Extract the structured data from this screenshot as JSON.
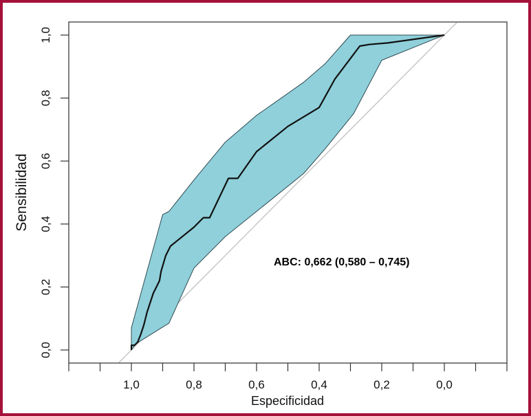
{
  "chart_data": {
    "type": "line",
    "title": "",
    "xlabel": "Especificidad",
    "ylabel": "Sensibilidad",
    "x_reversed": true,
    "xlim": [
      1.2,
      -0.2
    ],
    "ylim": [
      0.0,
      1.0
    ],
    "x_ticks": [
      1.0,
      0.8,
      0.6,
      0.4,
      0.2,
      0.0
    ],
    "x_tick_labels": [
      "1,0",
      "0,8",
      "0,6",
      "0,4",
      "0,2",
      "0,0"
    ],
    "y_ticks": [
      0.0,
      0.2,
      0.4,
      0.6,
      0.8,
      1.0
    ],
    "y_tick_labels": [
      "0,0",
      "0,2",
      "0,4",
      "0,6",
      "0,8",
      "1,0"
    ],
    "grid": false,
    "annotation": "ABC: 0,662 (0,580 – 0,745)",
    "colors": {
      "band": "#8fd0da",
      "band_edge": "#2f4a52",
      "curve": "#111111",
      "diagonal": "#c8c8c8",
      "frame": "#a3123a"
    },
    "series": [
      {
        "role": "roc-curve",
        "x": [
          1.0,
          1.0,
          0.99,
          0.98,
          0.97,
          0.96,
          0.95,
          0.93,
          0.91,
          0.905,
          0.89,
          0.875,
          0.8,
          0.77,
          0.75,
          0.69,
          0.66,
          0.6,
          0.55,
          0.5,
          0.45,
          0.4,
          0.35,
          0.27,
          0.24,
          0.18,
          0.0
        ],
        "y": [
          0.0,
          0.015,
          0.015,
          0.025,
          0.05,
          0.08,
          0.12,
          0.18,
          0.22,
          0.25,
          0.3,
          0.33,
          0.39,
          0.42,
          0.42,
          0.545,
          0.545,
          0.63,
          0.67,
          0.71,
          0.74,
          0.77,
          0.86,
          0.965,
          0.97,
          0.975,
          1.0
        ]
      },
      {
        "role": "ci-upper",
        "x": [
          1.0,
          1.0,
          0.9,
          0.88,
          0.8,
          0.7,
          0.6,
          0.55,
          0.45,
          0.38,
          0.3,
          0.0
        ],
        "y": [
          0.0,
          0.07,
          0.43,
          0.44,
          0.54,
          0.66,
          0.745,
          0.78,
          0.85,
          0.91,
          1.0,
          1.0
        ]
      },
      {
        "role": "ci-lower",
        "x": [
          0.0,
          0.2,
          0.29,
          0.38,
          0.45,
          0.6,
          0.7,
          0.8,
          0.88,
          0.985,
          1.0
        ],
        "y": [
          1.0,
          0.92,
          0.75,
          0.64,
          0.56,
          0.44,
          0.36,
          0.26,
          0.085,
          0.02,
          0.0
        ]
      },
      {
        "role": "reference-diagonal",
        "x": [
          1.04,
          -0.04
        ],
        "y": [
          -0.04,
          1.04
        ]
      }
    ]
  }
}
